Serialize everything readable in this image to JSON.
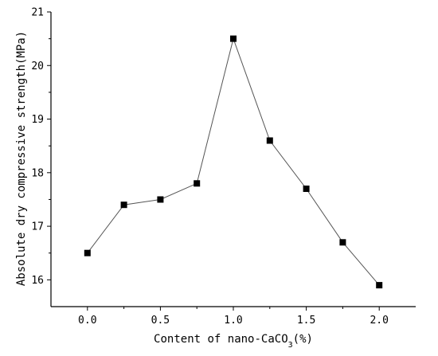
{
  "chart_data": {
    "type": "line",
    "xlabel_prefix": "Content of nano-CaCO",
    "xlabel_sub": "3",
    "xlabel_suffix": "(%)",
    "ylabel": "Absolute dry compressive strength(MPa)",
    "xlim": [
      -0.25,
      2.25
    ],
    "ylim": [
      15.5,
      21
    ],
    "xticks": [
      "0.0",
      "0.5",
      "1.0",
      "1.5",
      "2.0"
    ],
    "yticks": [
      "16",
      "17",
      "18",
      "19",
      "20",
      "21"
    ],
    "x": [
      0.0,
      0.25,
      0.5,
      0.75,
      1.0,
      1.25,
      1.5,
      1.75,
      2.0
    ],
    "y": [
      16.5,
      17.4,
      17.5,
      17.8,
      20.5,
      18.6,
      17.7,
      16.7,
      15.9
    ],
    "colors": {
      "marker": "#000000",
      "line": "#555555"
    }
  }
}
